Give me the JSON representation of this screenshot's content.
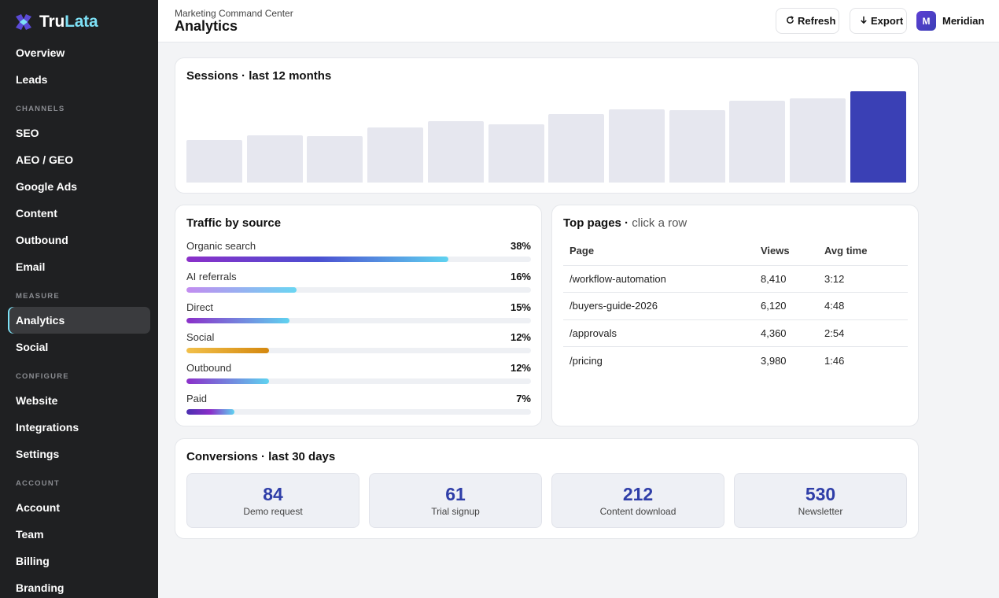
{
  "brand": {
    "name_part1": "Tru",
    "name_part2": "Lata",
    "icon": "trulata-logo-icon"
  },
  "sidebar": {
    "items": [
      {
        "type": "item",
        "label": "Overview"
      },
      {
        "type": "item",
        "label": "Leads"
      },
      {
        "type": "section",
        "label": "CHANNELS"
      },
      {
        "type": "item",
        "label": "SEO"
      },
      {
        "type": "item",
        "label": "AEO / GEO"
      },
      {
        "type": "item",
        "label": "Google Ads"
      },
      {
        "type": "item",
        "label": "Content"
      },
      {
        "type": "item",
        "label": "Outbound"
      },
      {
        "type": "item",
        "label": "Email"
      },
      {
        "type": "section",
        "label": "MEASURE"
      },
      {
        "type": "item",
        "label": "Analytics",
        "active": true
      },
      {
        "type": "item",
        "label": "Social"
      },
      {
        "type": "section",
        "label": "CONFIGURE"
      },
      {
        "type": "item",
        "label": "Website"
      },
      {
        "type": "item",
        "label": "Integrations"
      },
      {
        "type": "item",
        "label": "Settings"
      },
      {
        "type": "section",
        "label": "ACCOUNT"
      },
      {
        "type": "item",
        "label": "Account"
      },
      {
        "type": "item",
        "label": "Team"
      },
      {
        "type": "item",
        "label": "Billing"
      },
      {
        "type": "item",
        "label": "Branding"
      }
    ]
  },
  "header": {
    "subtitle": "Marketing Command Center",
    "title": "Analytics",
    "refresh_label": "Refresh",
    "refresh_icon": "refresh-icon",
    "export_label": "Export",
    "export_icon": "arrow-down-icon",
    "user_initial": "M",
    "user_name": "Meridian"
  },
  "sessions": {
    "title": "Sessions · last 12 months",
    "highlight_color": "#3a40b5",
    "bar_color": "#e6e7ef"
  },
  "chart_data": {
    "type": "bar",
    "values": [
      46,
      51,
      50,
      59,
      66,
      63,
      74,
      79,
      78,
      88,
      91,
      98
    ],
    "ylim": [
      0,
      100
    ],
    "highlight_index": 11
  },
  "traffic": {
    "title": "Traffic by source",
    "sources": [
      {
        "label": "Organic search",
        "pct_text": "38%",
        "fill": 0.76,
        "gradient": [
          "#8b2fc9",
          "#4b4fd1",
          "#5fd3f0"
        ]
      },
      {
        "label": "AI referrals",
        "pct_text": "16%",
        "fill": 0.32,
        "gradient": [
          "#c38cf0",
          "#6ad6f2"
        ]
      },
      {
        "label": "Direct",
        "pct_text": "15%",
        "fill": 0.3,
        "gradient": [
          "#8b2fc9",
          "#5fd3f0"
        ]
      },
      {
        "label": "Social",
        "pct_text": "12%",
        "fill": 0.24,
        "gradient": [
          "#f2c04a",
          "#d4880f"
        ]
      },
      {
        "label": "Outbound",
        "pct_text": "12%",
        "fill": 0.24,
        "gradient": [
          "#8b2fc9",
          "#5fd3f0"
        ]
      },
      {
        "label": "Paid",
        "pct_text": "7%",
        "fill": 0.14,
        "gradient": [
          "#4b2fb0",
          "#8b2fc9",
          "#5fd3f0"
        ]
      }
    ]
  },
  "pages": {
    "title": "Top pages · ",
    "hint": "click a row",
    "columns": [
      "Page",
      "Views",
      "Avg time"
    ],
    "rows": [
      [
        "/workflow-automation",
        "8,410",
        "3:12"
      ],
      [
        "/buyers-guide-2026",
        "6,120",
        "4:48"
      ],
      [
        "/approvals",
        "4,360",
        "2:54"
      ],
      [
        "/pricing",
        "3,980",
        "1:46"
      ]
    ]
  },
  "conversions": {
    "title": "Conversions · last 30 days",
    "stats": [
      {
        "value": "84",
        "label": "Demo request"
      },
      {
        "value": "61",
        "label": "Trial signup"
      },
      {
        "value": "212",
        "label": "Content download"
      },
      {
        "value": "530",
        "label": "Newsletter"
      }
    ]
  }
}
